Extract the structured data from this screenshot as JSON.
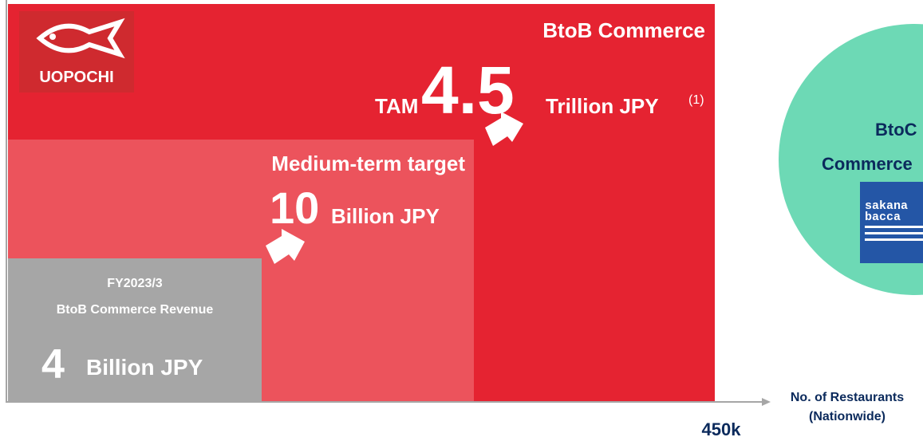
{
  "logo": {
    "text": "UOPOCHI"
  },
  "tam": {
    "title": "BtoB Commerce",
    "prefix": "TAM",
    "value": "4.5",
    "unit": "Trillion JPY",
    "note": "(1)"
  },
  "target": {
    "title": "Medium-term target",
    "value": "10",
    "unit": "Billion JPY"
  },
  "current": {
    "period": "FY2023/3",
    "title": "BtoB Commerce Revenue",
    "value": "4",
    "unit": "Billion JPY"
  },
  "axis": {
    "label_line1": "No. of Restaurants",
    "label_line2": "(Nationwide)",
    "end_label": "450k"
  },
  "btoc": {
    "line1": "BtoC",
    "line2": "Commerce",
    "logo_line1": "sakana",
    "logo_line2": "bacca"
  }
}
